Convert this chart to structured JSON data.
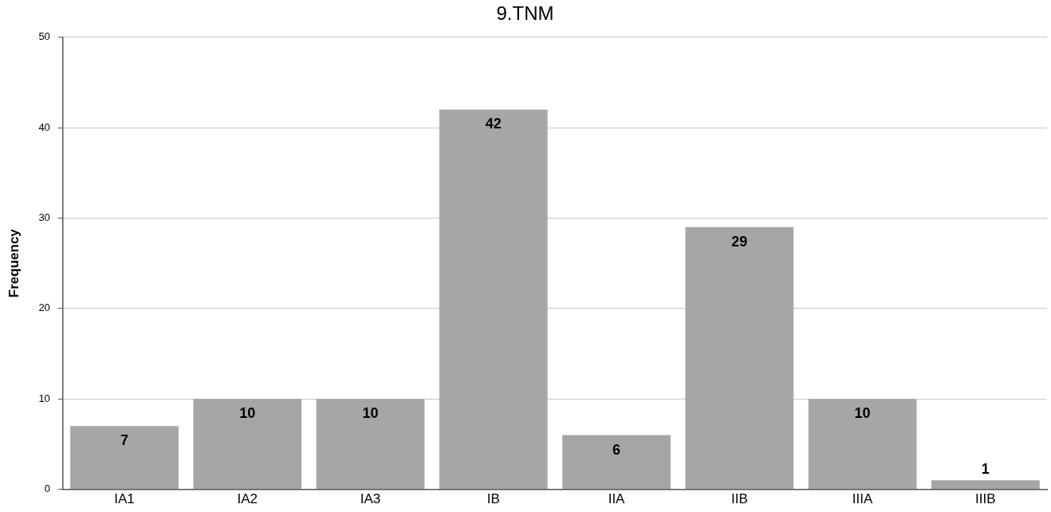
{
  "chart_data": {
    "type": "bar",
    "title": "9.TNM",
    "ylabel": "Frequency",
    "categories": [
      "IA1",
      "IA2",
      "IA3",
      "IB",
      "IIA",
      "IIB",
      "IIIA",
      "IIIB"
    ],
    "values": [
      7,
      10,
      10,
      42,
      6,
      29,
      10,
      1
    ],
    "color": "#a6a6a6",
    "ylim": [
      0,
      50
    ],
    "yticks": [
      0,
      10,
      20,
      30,
      40,
      50
    ],
    "grid": "y",
    "data_labels": true
  }
}
